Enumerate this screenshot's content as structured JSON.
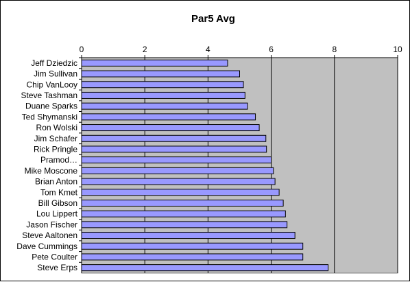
{
  "chart_data": {
    "type": "bar",
    "orientation": "horizontal",
    "title": "Par5 Avg",
    "xlabel": "",
    "ylabel": "",
    "xlim": [
      0,
      10
    ],
    "x_ticks": [
      "0",
      "2",
      "4",
      "6",
      "8",
      "10"
    ],
    "x_tick_values": [
      0,
      2,
      4,
      6,
      8,
      10
    ],
    "x_axis_position": "top",
    "grid": true,
    "legend": "none",
    "categories": [
      "Jeff Dziedzic",
      "Jim Sullivan",
      "Chip VanLooy",
      "Steve Tashman",
      "Duane Sparks",
      "Ted Shymanski",
      "Ron Wolski",
      "Jim Schafer",
      "Rick Pringle",
      "Pramod…",
      "Mike Moscone",
      "Brian Anton",
      "Tom Kmet",
      "Bill Gibson",
      "Lou Lippert",
      "Jason Fischer",
      "Steve Aaltonen",
      "Dave Cummings",
      "Pete Coulter",
      "Steve Erps"
    ],
    "values": [
      4.62,
      5.0,
      5.12,
      5.17,
      5.25,
      5.5,
      5.62,
      5.83,
      5.85,
      6.0,
      6.07,
      6.12,
      6.25,
      6.38,
      6.45,
      6.5,
      6.75,
      7.0,
      7.0,
      7.8
    ],
    "colors": {
      "bar_fill": "#9999ff",
      "bar_stroke": "#000000",
      "plot_background": "#c0c0c0",
      "gridline": "#000000"
    }
  }
}
